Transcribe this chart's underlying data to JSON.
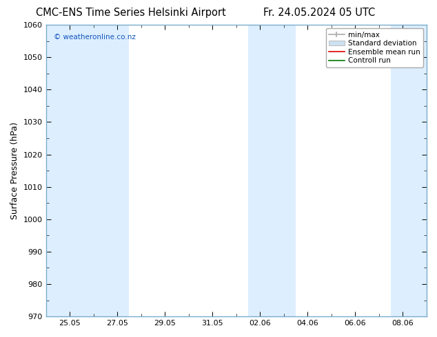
{
  "title_left": "CMC-ENS Time Series Helsinki Airport",
  "title_right": "Fr. 24.05.2024 05 UTC",
  "ylabel": "Surface Pressure (hPa)",
  "ylim": [
    970,
    1060
  ],
  "yticks": [
    970,
    980,
    990,
    1000,
    1010,
    1020,
    1030,
    1040,
    1050,
    1060
  ],
  "xtick_labels": [
    "25.05",
    "27.05",
    "29.05",
    "31.05",
    "02.06",
    "04.06",
    "06.06",
    "08.06"
  ],
  "band_color": "#ddeeff",
  "background_color": "#ffffff",
  "watermark": "© weatheronline.co.nz",
  "watermark_color": "#1155bb",
  "legend_labels": [
    "min/max",
    "Standard deviation",
    "Ensemble mean run",
    "Controll run"
  ],
  "title_fontsize": 10.5,
  "axis_label_fontsize": 9,
  "tick_fontsize": 8,
  "border_color": "#7aaccc"
}
